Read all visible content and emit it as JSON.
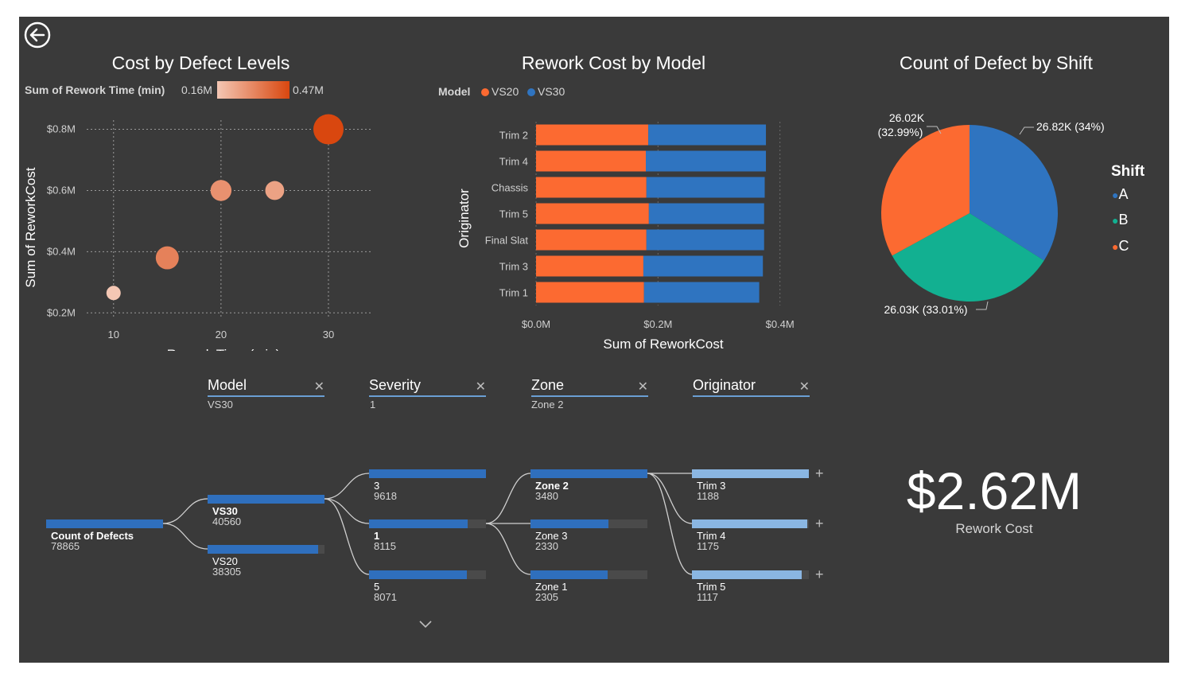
{
  "nav": {
    "back_icon": "back-arrow-icon"
  },
  "scatter": {
    "title": "Cost by Defect Levels",
    "legend_label": "Sum of Rework Time (min)",
    "legend_min": "0.16M",
    "legend_max": "0.47M",
    "xlabel": "Rework Time (min)",
    "ylabel": "Sum of ReworkCost",
    "colors": {
      "low": "#f4c7b4",
      "high": "#d9470f"
    }
  },
  "bar": {
    "title": "Rework Cost by Model",
    "legend_title": "Model",
    "legend_items": [
      "VS20",
      "VS30"
    ],
    "xlabel": "Sum of ReworkCost",
    "ylabel": "Originator",
    "colors": {
      "VS20": "#fc6a31",
      "VS30": "#2f74c0"
    }
  },
  "pie": {
    "title": "Count of Defect by Shift",
    "legend_title": "Shift",
    "legend_items": [
      "A",
      "B",
      "C"
    ],
    "colors": {
      "A": "#2f74c0",
      "B": "#12b091",
      "C": "#fc6a31"
    },
    "labels": {
      "A": "26.82K (34%)",
      "B": "26.03K (33.01%)",
      "C_line1": "26.02K",
      "C_line2": "(32.99%)"
    }
  },
  "chart_data": [
    {
      "type": "scatter",
      "title": "Cost by Defect Levels",
      "xlabel": "Rework Time (min)",
      "ylabel": "Sum of ReworkCost",
      "size_label": "Sum of Rework Time (min)",
      "xlim": [
        7.5,
        34
      ],
      "ylim": [
        0.18,
        0.83
      ],
      "x_ticks": [
        10,
        20,
        30
      ],
      "x_tick_labels": [
        "10",
        "20",
        "30"
      ],
      "y_ticks": [
        0.2,
        0.4,
        0.6,
        0.8
      ],
      "y_tick_labels": [
        "$0.2M",
        "$0.4M",
        "$0.6M",
        "$0.8M"
      ],
      "grid": true,
      "points": [
        {
          "x": 10,
          "y": 0.265,
          "size": 0.16
        },
        {
          "x": 15,
          "y": 0.38,
          "size": 0.33
        },
        {
          "x": 20,
          "y": 0.6,
          "size": 0.29
        },
        {
          "x": 25,
          "y": 0.6,
          "size": 0.25
        },
        {
          "x": 30,
          "y": 0.8,
          "size": 0.47
        }
      ]
    },
    {
      "type": "bar",
      "orientation": "horizontal",
      "stacked": true,
      "title": "Rework Cost by Model",
      "xlabel": "Sum of ReworkCost",
      "ylabel": "Originator",
      "categories": [
        "Trim 2",
        "Trim 4",
        "Chassis",
        "Trim 5",
        "Final Slat",
        "Trim 3",
        "Trim 1"
      ],
      "series": [
        {
          "name": "VS20",
          "values": [
            0.184,
            0.18,
            0.181,
            0.185,
            0.181,
            0.176,
            0.177
          ]
        },
        {
          "name": "VS30",
          "values": [
            0.193,
            0.197,
            0.194,
            0.189,
            0.193,
            0.196,
            0.189
          ]
        }
      ],
      "xlim": [
        0,
        0.42
      ],
      "x_ticks": [
        0,
        0.2,
        0.4
      ],
      "x_tick_labels": [
        "$0.0M",
        "$0.2M",
        "$0.4M"
      ]
    },
    {
      "type": "pie",
      "title": "Count of Defect by Shift",
      "categories": [
        "A",
        "B",
        "C"
      ],
      "values": [
        26820,
        26030,
        26020
      ],
      "percent_labels": [
        "26.82K (34%)",
        "26.03K (33.01%)",
        "26.02K (32.99%)"
      ]
    }
  ],
  "filters": [
    {
      "label": "Model",
      "value": "VS30"
    },
    {
      "label": "Severity",
      "value": "1"
    },
    {
      "label": "Zone",
      "value": "Zone 2"
    },
    {
      "label": "Originator",
      "value": ""
    }
  ],
  "tree": {
    "root": {
      "name": "Count of Defects",
      "count": "78865",
      "frac": 1.0
    },
    "level1": [
      {
        "name": "VS30",
        "count": "40560",
        "frac": 1.0
      },
      {
        "name": "VS20",
        "count": "38305",
        "frac": 0.944
      }
    ],
    "level2": [
      {
        "name": "3",
        "count": "9618",
        "frac": 1.0
      },
      {
        "name": "1",
        "count": "8115",
        "frac": 0.844
      },
      {
        "name": "5",
        "count": "8071",
        "frac": 0.839
      }
    ],
    "level3": [
      {
        "name": "Zone 2",
        "count": "3480",
        "frac": 1.0
      },
      {
        "name": "Zone 3",
        "count": "2330",
        "frac": 0.67
      },
      {
        "name": "Zone 1",
        "count": "2305",
        "frac": 0.662
      }
    ],
    "level4": [
      {
        "name": "Trim 3",
        "count": "1188",
        "frac": 1.0
      },
      {
        "name": "Trim 4",
        "count": "1175",
        "frac": 0.989
      },
      {
        "name": "Trim 5",
        "count": "1117",
        "frac": 0.94
      }
    ]
  },
  "kpi": {
    "value": "$2.62M",
    "label": "Rework Cost"
  }
}
